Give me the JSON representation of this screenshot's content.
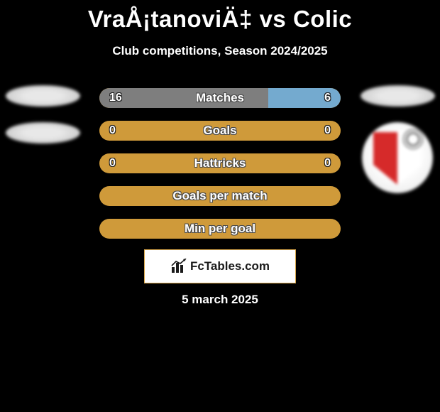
{
  "title": "VraÅ¡tanoviÄ‡ vs Colic",
  "subtitle": "Club competitions, Season 2024/2025",
  "logo_text": "FcTables.com",
  "date": "5 march 2025",
  "colors": {
    "bg": "#000000",
    "bar_base": "#cf9a3a",
    "bar_left": "#7e7e7e",
    "bar_right": "#74aacf",
    "text": "#ffffff"
  },
  "bars": [
    {
      "label": "Matches",
      "left_val": "16",
      "right_val": "6",
      "left_pct": 70,
      "right_pct": 30,
      "show_left_fill": true,
      "show_right_fill": true
    },
    {
      "label": "Goals",
      "left_val": "0",
      "right_val": "0",
      "left_pct": 0,
      "right_pct": 0,
      "show_left_fill": false,
      "show_right_fill": false
    },
    {
      "label": "Hattricks",
      "left_val": "0",
      "right_val": "0",
      "left_pct": 0,
      "right_pct": 0,
      "show_left_fill": false,
      "show_right_fill": false
    },
    {
      "label": "Goals per match",
      "left_val": "",
      "right_val": "",
      "left_pct": 0,
      "right_pct": 0,
      "show_left_fill": false,
      "show_right_fill": false
    },
    {
      "label": "Min per goal",
      "left_val": "",
      "right_val": "",
      "left_pct": 0,
      "right_pct": 0,
      "show_left_fill": false,
      "show_right_fill": false
    }
  ]
}
